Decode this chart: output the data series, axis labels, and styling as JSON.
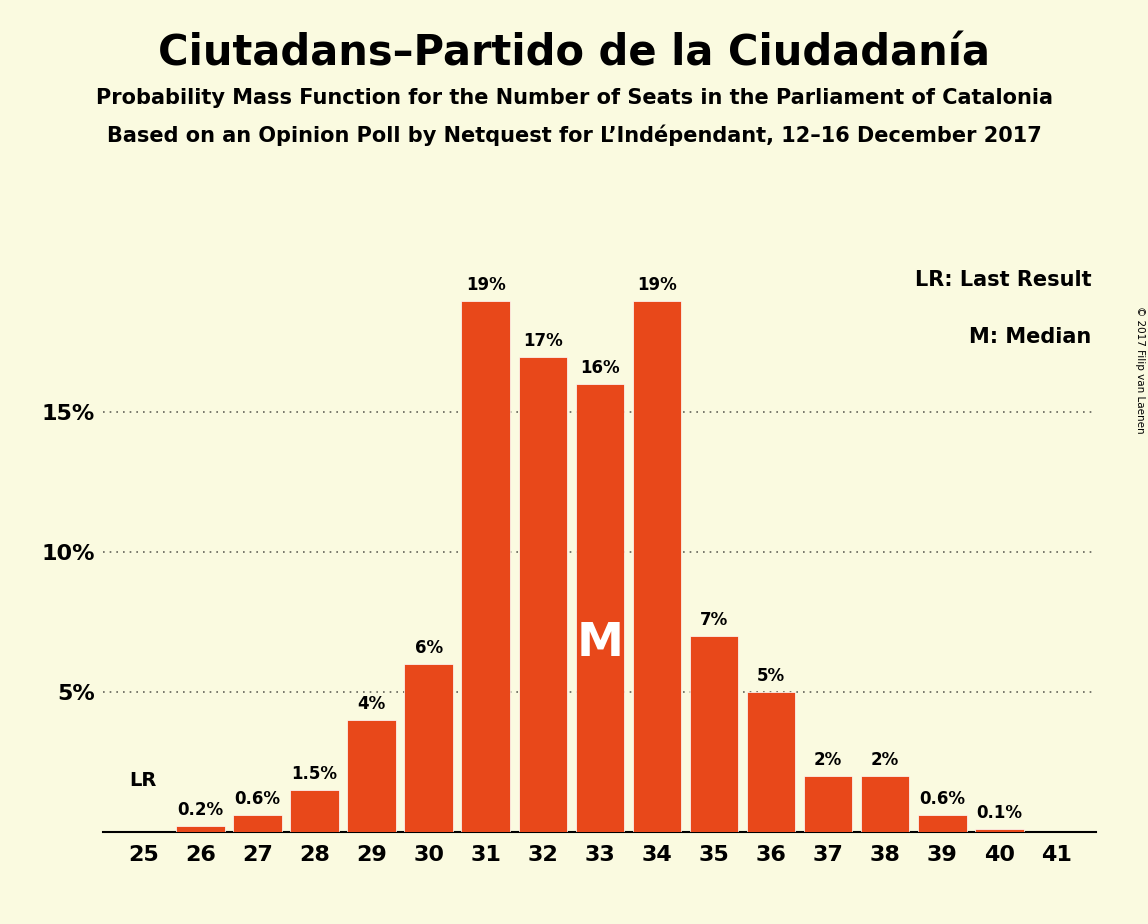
{
  "title": "Ciutadans–Partido de la Ciudadanía",
  "subtitle1": "Probability Mass Function for the Number of Seats in the Parliament of Catalonia",
  "subtitle2": "Based on an Opinion Poll by Netquest for L’Indépendant, 12–16 December 2017",
  "copyright": "© 2017 Filip van Laenen",
  "seats": [
    25,
    26,
    27,
    28,
    29,
    30,
    31,
    32,
    33,
    34,
    35,
    36,
    37,
    38,
    39,
    40,
    41
  ],
  "probabilities": [
    0.0,
    0.2,
    0.6,
    1.5,
    4.0,
    6.0,
    19.0,
    17.0,
    16.0,
    19.0,
    7.0,
    5.0,
    2.0,
    2.0,
    0.6,
    0.1,
    0.0
  ],
  "bar_color": "#E8481A",
  "background_color": "#FAFAE0",
  "lr_seat": 25,
  "median_seat": 33,
  "legend_lr": "LR: Last Result",
  "legend_m": "M: Median",
  "ylabel_ticks": [
    5,
    10,
    15
  ],
  "ylim": [
    0,
    20.5
  ],
  "bar_width": 0.85
}
